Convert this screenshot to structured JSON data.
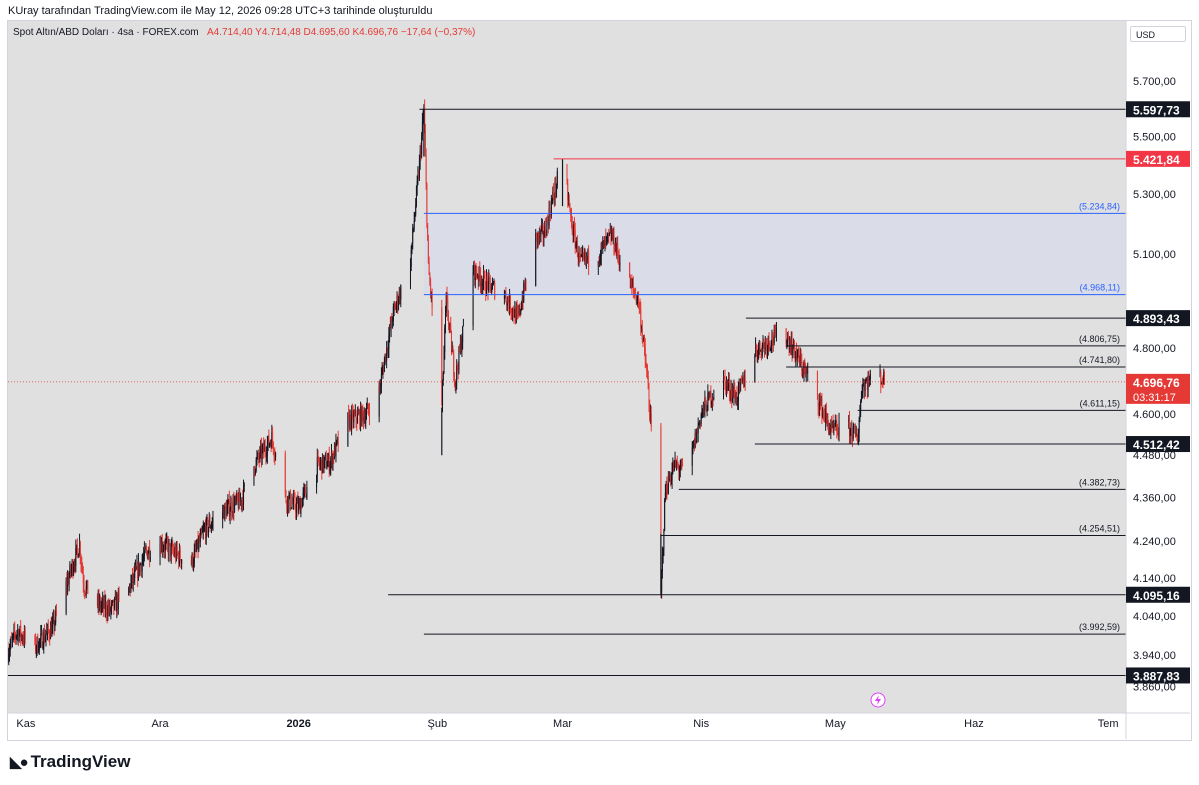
{
  "credit": "KUray tarafından TradingView.com ile May 12, 2026 09:28 UTC+3 tarihinde oluşturuldu",
  "legend": {
    "symbol": "Spot Altın/ABD Doları · 4sa · FOREX.com",
    "ohlc": "A4.714,40  Y4.714,48  D4.695,60  K4.696,76  −17,64 (−0,37%)"
  },
  "currency_button": "USD",
  "brand": "TradingView",
  "colors": {
    "background": "#e0e0e0",
    "up": "#131722",
    "down": "#e53935",
    "zone_line": "#2962ff",
    "zone_fill": "#d8dbe7",
    "resistance_line": "#f23645"
  },
  "chart_data": {
    "type": "candlestick",
    "title": "",
    "symbol": "Spot Altın/ABD Doları",
    "timeframe": "4sa",
    "x_ticks": [
      {
        "label": "Kas",
        "date": "2025-11-01"
      },
      {
        "label": "Ara",
        "date": "2025-12-01"
      },
      {
        "label": "2026",
        "date": "2026-01-01",
        "bold": true
      },
      {
        "label": "Şub",
        "date": "2026-02-01"
      },
      {
        "label": "Mar",
        "date": "2026-03-01"
      },
      {
        "label": "Nis",
        "date": "2026-04-01"
      },
      {
        "label": "May",
        "date": "2026-05-01"
      },
      {
        "label": "Haz",
        "date": "2026-06-01"
      },
      {
        "label": "Tem",
        "date": "2026-07-01"
      }
    ],
    "xlim": [
      "2025-10-28",
      "2026-07-05"
    ],
    "y_ticks": [
      "5.700,00",
      "5.500,00",
      "5.300,00",
      "5.100,00",
      "4.800,00",
      "4.600,00",
      "4.480,00",
      "4.360,00",
      "4.240,00",
      "4.140,00",
      "4.040,00",
      "3.940,00",
      "3.860,00"
    ],
    "y_tick_values": [
      5700,
      5500,
      5300,
      5100,
      4800,
      4600,
      4480,
      4360,
      4240,
      4140,
      4040,
      3940,
      3860
    ],
    "y_scale": "log",
    "ylim": [
      3795,
      5925
    ],
    "current_price": {
      "value": 4696.76,
      "label": "4.696,76",
      "countdown": "03:31:17"
    },
    "levels": [
      {
        "value": 5597.73,
        "label": "5.597,73",
        "style": "tag",
        "color": "#131722",
        "start": "2026-01-28"
      },
      {
        "value": 5421.84,
        "label": "5.421,84",
        "style": "tag",
        "color": "#f23645",
        "start": "2026-02-27"
      },
      {
        "value": 5234.84,
        "label": "(5.234,84)",
        "style": "text",
        "color": "#2962ff",
        "start": "2026-01-29"
      },
      {
        "value": 4968.11,
        "label": "(4.968,11)",
        "style": "text",
        "color": "#2962ff",
        "start": "2026-01-29"
      },
      {
        "value": 4893.43,
        "label": "4.893,43",
        "style": "tag",
        "color": "#131722",
        "start": "2026-04-11"
      },
      {
        "value": 4806.75,
        "label": "(4.806,75)",
        "style": "text",
        "color": "#131722",
        "start": "2026-04-20"
      },
      {
        "value": 4741.8,
        "label": "(4.741,80)",
        "style": "text",
        "color": "#131722",
        "start": "2026-04-20"
      },
      {
        "value": 4611.15,
        "label": "(4.611,15)",
        "style": "text",
        "color": "#131722",
        "start": "2026-05-06"
      },
      {
        "value": 4512.42,
        "label": "4.512,42",
        "style": "tag",
        "color": "#131722",
        "start": "2026-04-13"
      },
      {
        "value": 4382.73,
        "label": "(4.382,73)",
        "style": "text",
        "color": "#131722",
        "start": "2026-03-27"
      },
      {
        "value": 4254.51,
        "label": "(4.254,51)",
        "style": "text",
        "color": "#131722",
        "start": "2026-03-23"
      },
      {
        "value": 4095.16,
        "label": "4.095,16",
        "style": "tag",
        "color": "#131722",
        "start": "2026-01-21"
      },
      {
        "value": 3992.59,
        "label": "(3.992,59)",
        "style": "text",
        "color": "#131722",
        "start": "2026-01-29"
      },
      {
        "value": 3887.83,
        "label": "3.887,83",
        "style": "tag",
        "color": "#131722",
        "start": "2025-10-28"
      }
    ],
    "zone": {
      "top": 5234.84,
      "bottom": 4968.11,
      "start": "2026-01-29"
    },
    "path": [
      {
        "date": "2025-10-28",
        "price": 3950
      },
      {
        "date": "2025-10-30",
        "price": 4000
      },
      {
        "date": "2025-11-03",
        "price": 3960
      },
      {
        "date": "2025-11-05",
        "price": 3985
      },
      {
        "date": "2025-11-07",
        "price": 4010
      },
      {
        "date": "2025-11-10",
        "price": 4120
      },
      {
        "date": "2025-11-13",
        "price": 4230
      },
      {
        "date": "2025-11-14",
        "price": 4120
      },
      {
        "date": "2025-11-17",
        "price": 4070
      },
      {
        "date": "2025-11-20",
        "price": 4055
      },
      {
        "date": "2025-11-24",
        "price": 4110
      },
      {
        "date": "2025-11-28",
        "price": 4210
      },
      {
        "date": "2025-12-01",
        "price": 4235
      },
      {
        "date": "2025-12-05",
        "price": 4200
      },
      {
        "date": "2025-12-08",
        "price": 4180
      },
      {
        "date": "2025-12-11",
        "price": 4270
      },
      {
        "date": "2025-12-15",
        "price": 4320
      },
      {
        "date": "2025-12-19",
        "price": 4350
      },
      {
        "date": "2025-12-22",
        "price": 4450
      },
      {
        "date": "2025-12-26",
        "price": 4530
      },
      {
        "date": "2025-12-29",
        "price": 4360
      },
      {
        "date": "2026-01-01",
        "price": 4330
      },
      {
        "date": "2026-01-05",
        "price": 4450
      },
      {
        "date": "2026-01-08",
        "price": 4460
      },
      {
        "date": "2026-01-12",
        "price": 4580
      },
      {
        "date": "2026-01-16",
        "price": 4600
      },
      {
        "date": "2026-01-19",
        "price": 4670
      },
      {
        "date": "2026-01-22",
        "price": 4900
      },
      {
        "date": "2026-01-26",
        "price": 5080
      },
      {
        "date": "2026-01-28",
        "price": 5400
      },
      {
        "date": "2026-01-29",
        "price": 5597.73
      },
      {
        "date": "2026-01-30",
        "price": 5050
      },
      {
        "date": "2026-02-02",
        "price": 4620
      },
      {
        "date": "2026-02-03",
        "price": 4950
      },
      {
        "date": "2026-02-05",
        "price": 4700
      },
      {
        "date": "2026-02-09",
        "price": 5050
      },
      {
        "date": "2026-02-12",
        "price": 5000
      },
      {
        "date": "2026-02-16",
        "price": 4970
      },
      {
        "date": "2026-02-19",
        "price": 4890
      },
      {
        "date": "2026-02-23",
        "price": 5150
      },
      {
        "date": "2026-02-25",
        "price": 5170
      },
      {
        "date": "2026-03-01",
        "price": 5421.84
      },
      {
        "date": "2026-03-03",
        "price": 5200
      },
      {
        "date": "2026-03-05",
        "price": 5070
      },
      {
        "date": "2026-03-09",
        "price": 5100
      },
      {
        "date": "2026-03-12",
        "price": 5160
      },
      {
        "date": "2026-03-15",
        "price": 5030
      },
      {
        "date": "2026-03-18",
        "price": 4950
      },
      {
        "date": "2026-03-20",
        "price": 4700
      },
      {
        "date": "2026-03-22",
        "price": 4330
      },
      {
        "date": "2026-03-23",
        "price": 4095.16
      },
      {
        "date": "2026-03-24",
        "price": 4380
      },
      {
        "date": "2026-03-26",
        "price": 4450
      },
      {
        "date": "2026-03-29",
        "price": 4430
      },
      {
        "date": "2026-04-01",
        "price": 4600
      },
      {
        "date": "2026-04-03",
        "price": 4650
      },
      {
        "date": "2026-04-06",
        "price": 4700
      },
      {
        "date": "2026-04-09",
        "price": 4650
      },
      {
        "date": "2026-04-13",
        "price": 4790
      },
      {
        "date": "2026-04-17",
        "price": 4830
      },
      {
        "date": "2026-04-20",
        "price": 4840
      },
      {
        "date": "2026-04-23",
        "price": 4760
      },
      {
        "date": "2026-04-27",
        "price": 4650
      },
      {
        "date": "2026-04-30",
        "price": 4550
      },
      {
        "date": "2026-05-04",
        "price": 4560
      },
      {
        "date": "2026-05-06",
        "price": 4530
      },
      {
        "date": "2026-05-07",
        "price": 4690
      },
      {
        "date": "2026-05-11",
        "price": 4715
      },
      {
        "date": "2026-05-12",
        "price": 4696.76
      }
    ]
  }
}
